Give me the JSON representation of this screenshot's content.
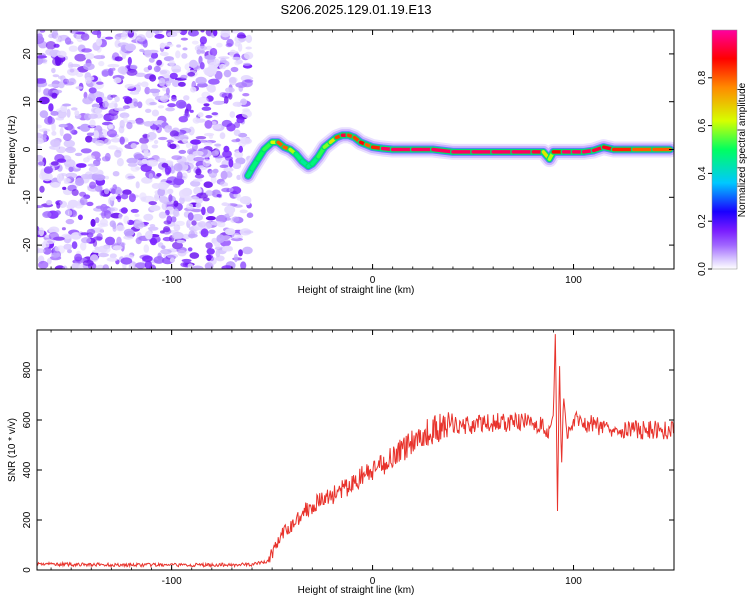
{
  "title": "S206.2025.129.01.19.E13",
  "colors": {
    "snr_line": "#e8332c",
    "background": "#ffffff",
    "speckle": "#9b4dff",
    "colormap": [
      "#ffffff",
      "#c9b3ff",
      "#7a1dff",
      "#1a00ff",
      "#00c8ff",
      "#00ff60",
      "#d6ff00",
      "#ff8a00",
      "#ff0000",
      "#ff00a0"
    ]
  },
  "chart_data": [
    {
      "type": "heatmap",
      "xlabel": "Height of straight line (km)",
      "ylabel": "Frequency (Hz)",
      "xlim": [
        -167,
        150
      ],
      "ylim": [
        -25,
        25
      ],
      "xticks": [
        -100,
        0,
        100
      ],
      "yticks": [
        -20,
        -10,
        0,
        10,
        20
      ],
      "colorbar": {
        "label": "Normalized spectral amplitude",
        "range": [
          0,
          1
        ],
        "ticks": [
          0.0,
          0.2,
          0.4,
          0.6,
          0.8
        ]
      },
      "noise_region_x": [
        -167,
        -61
      ],
      "ridge": {
        "x": [
          -62,
          -60,
          -57,
          -54,
          -50,
          -47,
          -44,
          -41,
          -38,
          -35,
          -32,
          -30,
          -27,
          -24,
          -21,
          -18,
          -15,
          -12,
          -9,
          -6,
          -3,
          0,
          5,
          10,
          20,
          30,
          40,
          50,
          60,
          70,
          80,
          85,
          88,
          90,
          95,
          100,
          105,
          110,
          115,
          120,
          130,
          140,
          148
        ],
        "y": [
          -5.5,
          -4,
          -2,
          0,
          1.5,
          1.5,
          0.5,
          0,
          -1,
          -2.5,
          -3.5,
          -3,
          -1.5,
          0.5,
          1.5,
          2.5,
          3,
          3,
          2.5,
          1.5,
          1,
          0.5,
          0.2,
          0,
          0,
          0,
          -0.5,
          -0.5,
          -0.5,
          -0.5,
          -0.5,
          -0.5,
          -2,
          -0.5,
          -0.5,
          -0.5,
          -0.5,
          -0.2,
          0.5,
          0,
          0,
          0,
          0
        ],
        "amplitude": [
          0.45,
          0.45,
          0.5,
          0.5,
          0.55,
          0.7,
          0.9,
          0.7,
          0.5,
          0.45,
          0.45,
          0.45,
          0.5,
          0.55,
          0.6,
          0.7,
          0.95,
          0.9,
          0.75,
          0.9,
          0.85,
          0.75,
          0.95,
          0.95,
          0.95,
          0.95,
          0.95,
          0.95,
          0.95,
          0.95,
          0.95,
          0.9,
          0.4,
          0.8,
          0.95,
          0.95,
          0.95,
          0.95,
          0.9,
          0.9,
          0.8,
          0.8,
          0.8
        ]
      }
    },
    {
      "type": "line",
      "xlabel": "Height of straight line (km)",
      "ylabel": "SNR (10 * v/v)",
      "xlim": [
        -167,
        150
      ],
      "ylim": [
        0,
        960
      ],
      "xticks": [
        -100,
        0,
        100
      ],
      "yticks": [
        0,
        200,
        400,
        600,
        800
      ],
      "series": [
        {
          "x": [
            -167,
            -150,
            -120,
            -100,
            -80,
            -60,
            -52,
            -48,
            -45,
            -40,
            -35,
            -30,
            -25,
            -20,
            -15,
            -10,
            -5,
            0,
            5,
            10,
            15,
            20,
            25,
            30,
            35,
            40,
            50,
            60,
            70,
            80,
            85,
            88,
            90,
            91,
            92,
            93,
            94,
            95,
            97,
            100,
            110,
            120,
            130,
            140,
            150
          ],
          "y": [
            25,
            22,
            20,
            20,
            20,
            22,
            35,
            100,
            140,
            180,
            230,
            260,
            280,
            300,
            320,
            340,
            380,
            390,
            420,
            460,
            480,
            520,
            540,
            560,
            570,
            580,
            580,
            590,
            590,
            590,
            570,
            560,
            620,
            960,
            240,
            840,
            400,
            700,
            520,
            600,
            580,
            570,
            560,
            560,
            560
          ]
        }
      ]
    }
  ]
}
